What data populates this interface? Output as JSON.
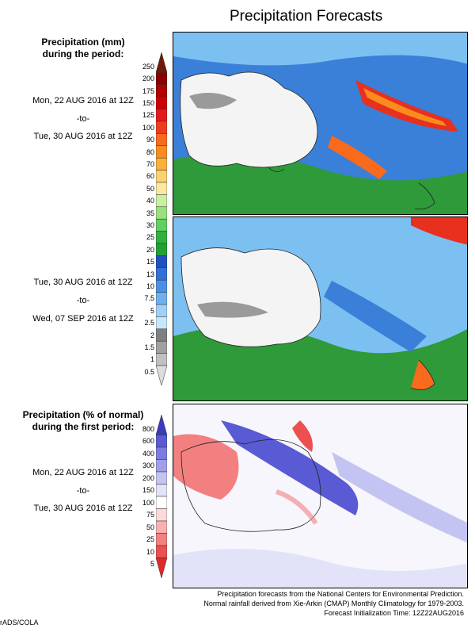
{
  "title": "Precipitation Forecasts",
  "panels": [
    {
      "heading": [
        "Precipitation (mm)",
        "during the period:"
      ],
      "period_start": "Mon, 22 AUG 2016 at 12Z",
      "period_sep": "-to-",
      "period_end": "Tue, 30 AUG 2016 at 12Z",
      "map": "australia-precip-week1"
    },
    {
      "period_start": "Tue, 30 AUG 2016 at 12Z",
      "period_sep": "-to-",
      "period_end": "Wed, 07 SEP 2016 at 12Z",
      "map": "australia-precip-week2"
    },
    {
      "heading": [
        "Precipitation (% of normal)",
        "during the first period:"
      ],
      "period_start": "Mon, 22 AUG 2016 at 12Z",
      "period_sep": "-to-",
      "period_end": "Tue, 30 AUG 2016 at 12Z",
      "map": "australia-precip-anomaly"
    }
  ],
  "precip_colorbar": {
    "labels": [
      "250",
      "200",
      "175",
      "150",
      "125",
      "100",
      "90",
      "80",
      "70",
      "60",
      "50",
      "40",
      "35",
      "30",
      "25",
      "20",
      "15",
      "13",
      "10",
      "7.5",
      "5",
      "2.5",
      "2",
      "1.5",
      "1",
      "0.5"
    ],
    "colors": [
      "#6e1a0a",
      "#8c0000",
      "#b00000",
      "#cc0000",
      "#e41a1c",
      "#f03c1e",
      "#f86a1c",
      "#fa8c1e",
      "#fcb03a",
      "#fcd270",
      "#fce8a0",
      "#c8f0a0",
      "#98e080",
      "#60d060",
      "#30b040",
      "#20a030",
      "#2050c0",
      "#3070d8",
      "#4a90e8",
      "#70b0f0",
      "#a0d0f8",
      "#c8e6fc",
      "#808080",
      "#a0a0a0",
      "#c0c0c0",
      "#dcdcdc"
    ]
  },
  "percent_colorbar": {
    "labels": [
      "800",
      "600",
      "400",
      "300",
      "200",
      "150",
      "100",
      "75",
      "50",
      "25",
      "10",
      "5"
    ],
    "colors": [
      "#3a3ac0",
      "#5a5ad4",
      "#7c7ce0",
      "#a0a0ea",
      "#c4c4f2",
      "#e2e2f8",
      "#ffffff",
      "#fcdada",
      "#f8b0b0",
      "#f28080",
      "#ec5050",
      "#e02828"
    ]
  },
  "footer": [
    "Precipitation forecasts from the National Centers for Environmental Prediction.",
    "Normal rainfall derived from Xie-Arkin (CMAP) Monthly Climatology for 1979-2003.",
    "Forecast Initialization Time: 12Z22AUG2016"
  ],
  "credit": "rADS/COLA"
}
